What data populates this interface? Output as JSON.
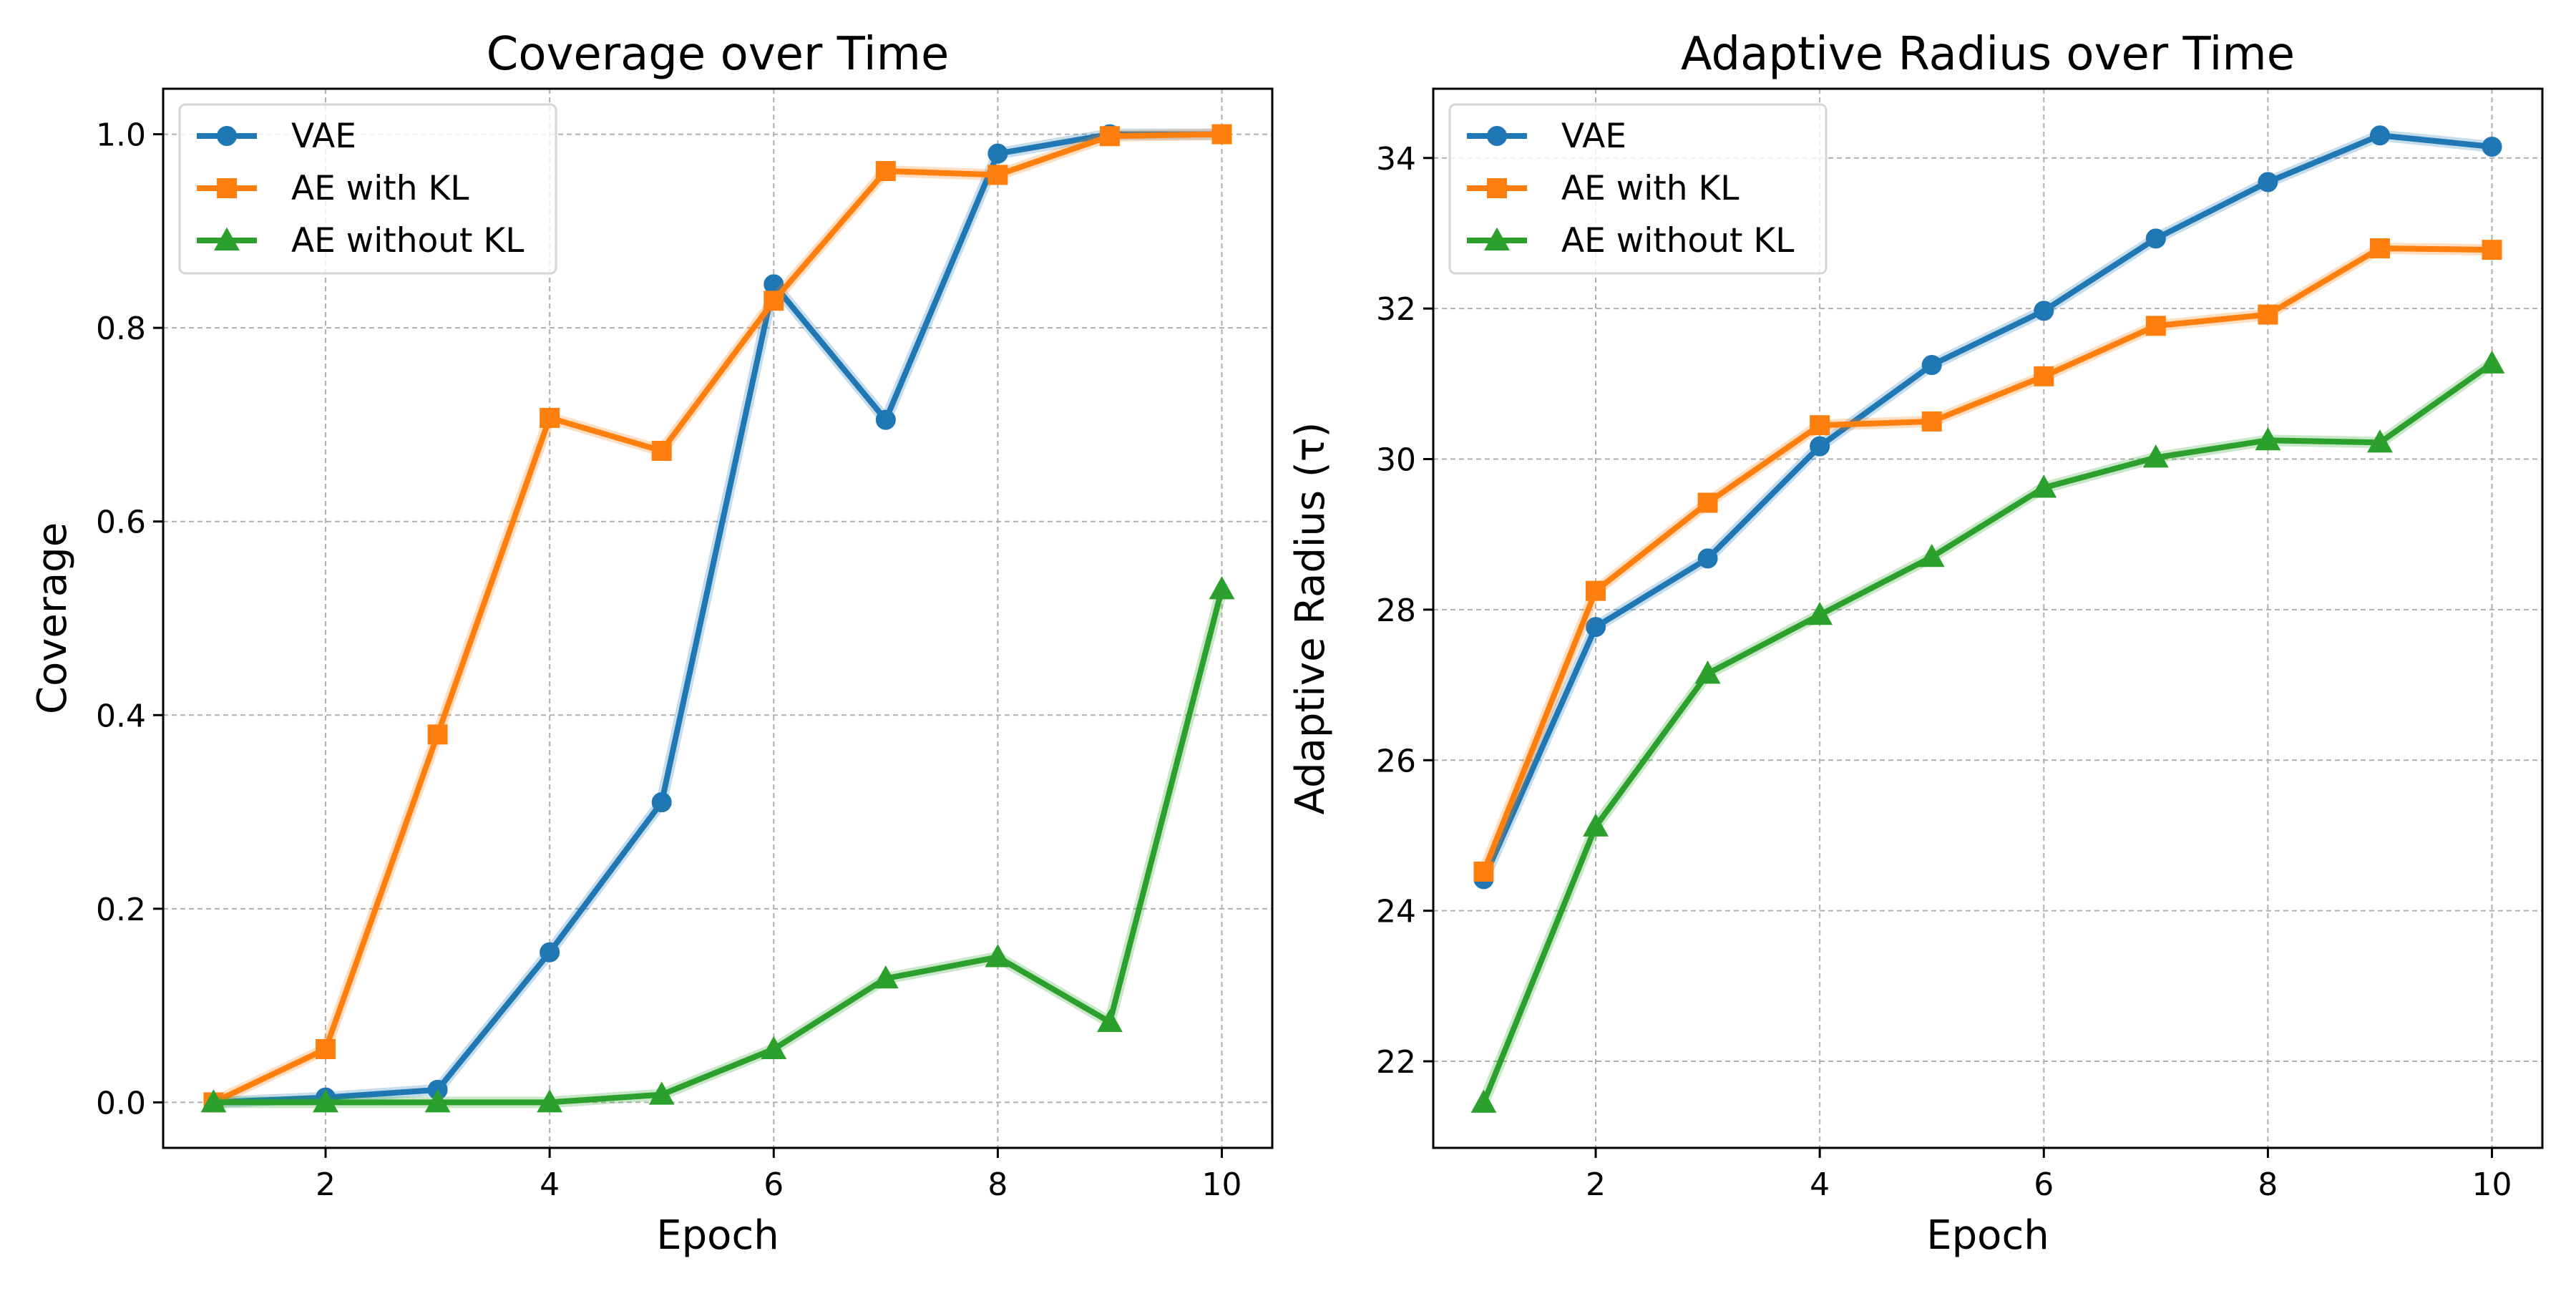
{
  "colors": {
    "VAE": "#1f77b4",
    "AE with KL": "#ff7f0e",
    "AE without KL": "#2ca02c"
  },
  "markers": {
    "VAE": "circle",
    "AE with KL": "square",
    "AE without KL": "triangle"
  },
  "chart_data": [
    {
      "id": "coverage",
      "type": "line",
      "title": "Coverage over Time",
      "xlabel": "Epoch",
      "ylabel": "Coverage",
      "xlim": [
        0.55,
        10.45
      ],
      "ylim": [
        -0.047,
        1.047
      ],
      "xticks": [
        2,
        4,
        6,
        8,
        10
      ],
      "yticks": [
        0.0,
        0.2,
        0.4,
        0.6,
        0.8,
        1.0
      ],
      "ytick_labels": [
        "0.0",
        "0.2",
        "0.4",
        "0.6",
        "0.8",
        "1.0"
      ],
      "grid": true,
      "legend_position": "top-left",
      "x": [
        1,
        2,
        3,
        4,
        5,
        6,
        7,
        8,
        9,
        10
      ],
      "series": [
        {
          "name": "VAE",
          "values": [
            0.0,
            0.005,
            0.013,
            0.155,
            0.31,
            0.845,
            0.705,
            0.98,
            1.0,
            1.0
          ]
        },
        {
          "name": "AE with KL",
          "values": [
            0.0,
            0.055,
            0.38,
            0.707,
            0.673,
            0.828,
            0.962,
            0.958,
            0.998,
            1.0
          ]
        },
        {
          "name": "AE without KL",
          "values": [
            0.0,
            0.0,
            0.0,
            0.0,
            0.008,
            0.055,
            0.128,
            0.15,
            0.083,
            0.53
          ]
        }
      ]
    },
    {
      "id": "radius",
      "type": "line",
      "title": "Adaptive Radius over Time",
      "xlabel": "Epoch",
      "ylabel": "Adaptive Radius (τ)",
      "xlim": [
        0.55,
        10.45
      ],
      "ylim": [
        20.85,
        34.92
      ],
      "xticks": [
        2,
        4,
        6,
        8,
        10
      ],
      "yticks": [
        22,
        24,
        26,
        28,
        30,
        32,
        34
      ],
      "ytick_labels": [
        "22",
        "24",
        "26",
        "28",
        "30",
        "32",
        "34"
      ],
      "grid": true,
      "legend_position": "top-left",
      "x": [
        1,
        2,
        3,
        4,
        5,
        6,
        7,
        8,
        9,
        10
      ],
      "series": [
        {
          "name": "VAE",
          "values": [
            24.42,
            27.77,
            28.68,
            30.17,
            31.25,
            31.97,
            32.93,
            33.68,
            34.3,
            34.15
          ]
        },
        {
          "name": "AE with KL",
          "values": [
            24.52,
            28.25,
            29.42,
            30.45,
            30.5,
            31.1,
            31.77,
            31.92,
            32.8,
            32.78
          ]
        },
        {
          "name": "AE without KL",
          "values": [
            21.45,
            25.12,
            27.15,
            27.93,
            28.7,
            29.62,
            30.02,
            30.25,
            30.22,
            31.27
          ]
        }
      ]
    }
  ]
}
